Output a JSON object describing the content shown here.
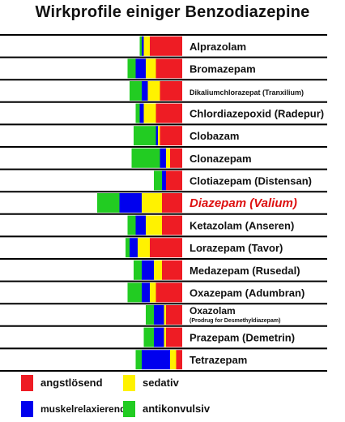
{
  "chart_data": {
    "type": "bar",
    "orientation": "horizontal-stacked",
    "title": "Wirkprofile einiger Benzodiazepine",
    "stack_order_right_to_left": [
      "angstlösend",
      "sedativ",
      "muskelrelaxierend",
      "antikonvulsiv"
    ],
    "categories": [
      {
        "name": "Alprazolam",
        "note": ""
      },
      {
        "name": "Bromazepam",
        "note": ""
      },
      {
        "name": "Dikaliumchlorazepat (Tranxilium)",
        "note": ""
      },
      {
        "name": "Chlordiazepoxid (Radepur)",
        "note": ""
      },
      {
        "name": "Clobazam",
        "note": ""
      },
      {
        "name": "Clonazepam",
        "note": ""
      },
      {
        "name": "Clotiazepam (Distensan)",
        "note": ""
      },
      {
        "name": "Diazepam (Valium)",
        "note": ""
      },
      {
        "name": "Ketazolam (Anseren)",
        "note": ""
      },
      {
        "name": "Lorazepam (Tavor)",
        "note": ""
      },
      {
        "name": "Medazepam (Rusedal)",
        "note": ""
      },
      {
        "name": "Oxazepam (Adumbran)",
        "note": ""
      },
      {
        "name": "Oxazolam",
        "note": "(Prodrug for Desmethyldiazepam)"
      },
      {
        "name": "Prazepam (Demetrin)",
        "note": ""
      },
      {
        "name": "Tetrazepam",
        "note": ""
      }
    ],
    "series": [
      {
        "name": "angstlösend",
        "color": "#ee1c24",
        "values": [
          80,
          65,
          55,
          65,
          55,
          30,
          40,
          50,
          50,
          80,
          50,
          65,
          40,
          40,
          15
        ]
      },
      {
        "name": "sedativ",
        "color": "#fff200",
        "values": [
          15,
          25,
          30,
          30,
          5,
          10,
          0,
          50,
          40,
          30,
          20,
          15,
          5,
          5,
          15
        ]
      },
      {
        "name": "muskelrelaxierend",
        "color": "#0000ee",
        "values": [
          5,
          25,
          15,
          10,
          5,
          15,
          10,
          55,
          25,
          20,
          30,
          20,
          25,
          25,
          70
        ]
      },
      {
        "name": "antikonvulsiv",
        "color": "#22cc22",
        "values": [
          5,
          20,
          30,
          10,
          55,
          70,
          20,
          55,
          20,
          10,
          20,
          35,
          20,
          25,
          15
        ]
      }
    ],
    "highlight": {
      "category_index": 7,
      "color": "#dd1111"
    },
    "legend": {
      "placement": "bottom",
      "items": [
        {
          "label": "angstlösend",
          "color": "#ee1c24"
        },
        {
          "label": "sedativ",
          "color": "#fff200"
        },
        {
          "label": "muskelrelaxierend",
          "color": "#0000ee"
        },
        {
          "label": "antikonvulsiv",
          "color": "#22cc22"
        }
      ]
    },
    "xlabel": "",
    "ylabel": "",
    "grid": false
  }
}
